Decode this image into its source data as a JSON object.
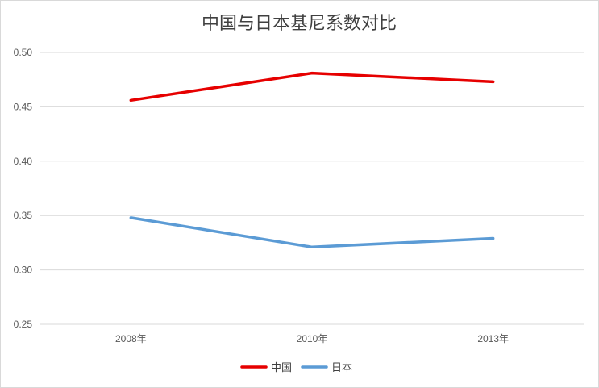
{
  "chart_data": {
    "type": "line",
    "title": "中国与日本基尼系数对比",
    "categories": [
      "2008年",
      "2010年",
      "2013年"
    ],
    "series": [
      {
        "name": "中国",
        "values": [
          0.456,
          0.481,
          0.473
        ],
        "color": "#e60000"
      },
      {
        "name": "日本",
        "values": [
          0.348,
          0.321,
          0.329
        ],
        "color": "#5b9bd5"
      }
    ],
    "ylim": [
      0.25,
      0.5
    ],
    "yticks": [
      "0.25",
      "0.30",
      "0.35",
      "0.40",
      "0.45",
      "0.50"
    ],
    "grid": true,
    "legend": "bottom"
  }
}
